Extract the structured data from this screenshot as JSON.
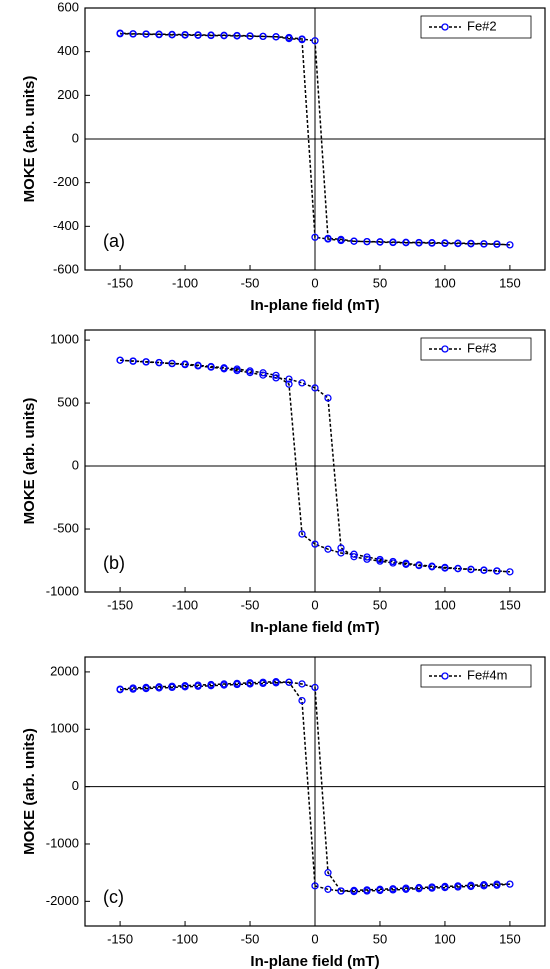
{
  "chart_data": [
    {
      "type": "line",
      "annotation": "(a)",
      "xlabel": "In-plane field (mT)",
      "ylabel": "MOKE (arb. units)",
      "x": [
        -150,
        -140,
        -130,
        -120,
        -110,
        -100,
        -90,
        -80,
        -70,
        -60,
        -50,
        -40,
        -30,
        -20,
        -10,
        0,
        10,
        20,
        30,
        40,
        50,
        60,
        70,
        80,
        90,
        100,
        110,
        120,
        130,
        140,
        150,
        140,
        130,
        120,
        110,
        100,
        90,
        80,
        70,
        60,
        50,
        40,
        30,
        20,
        10,
        0,
        -10,
        -20,
        -30,
        -40,
        -50,
        -60,
        -70,
        -80,
        -90,
        -100,
        -110,
        -120,
        -130,
        -140,
        -150
      ],
      "series": [
        {
          "name": "Fe#2",
          "color": "#0000ff",
          "line_color": "#000000",
          "values": [
            482,
            481,
            480,
            478,
            477,
            476,
            475,
            474,
            473,
            472,
            471,
            470,
            468,
            465,
            458,
            450,
            -455,
            -460,
            -468,
            -470,
            -472,
            -474,
            -475,
            -476,
            -477,
            -478,
            -479,
            -480,
            -481,
            -482,
            -485,
            -481,
            -480,
            -478,
            -477,
            -476,
            -475,
            -474,
            -473,
            -472,
            -471,
            -470,
            -468,
            -465,
            -458,
            -450,
            455,
            460,
            468,
            470,
            472,
            474,
            475,
            476,
            477,
            478,
            479,
            480,
            481,
            482,
            485
          ]
        }
      ],
      "xlim": [
        -177,
        177
      ],
      "xticks": [
        -150,
        -100,
        -50,
        0,
        50,
        100,
        150
      ],
      "ylim": [
        -600,
        600
      ],
      "yticks": [
        -600,
        -400,
        -200,
        0,
        200,
        400,
        600
      ],
      "legend": "upper right",
      "zero_lines": true
    },
    {
      "type": "line",
      "annotation": "(b)",
      "xlabel": "In-plane field (mT)",
      "ylabel": "MOKE (arb. units)",
      "x": [
        -150,
        -140,
        -130,
        -120,
        -110,
        -100,
        -90,
        -80,
        -70,
        -60,
        -50,
        -40,
        -30,
        -20,
        -10,
        0,
        10,
        20,
        30,
        40,
        50,
        60,
        70,
        80,
        90,
        100,
        110,
        120,
        130,
        140,
        150,
        140,
        130,
        120,
        110,
        100,
        90,
        80,
        70,
        60,
        50,
        40,
        30,
        20,
        10,
        0,
        -10,
        -20,
        -30,
        -40,
        -50,
        -60,
        -70,
        -80,
        -90,
        -100,
        -110,
        -120,
        -130,
        -140,
        -150
      ],
      "series": [
        {
          "name": "Fe#3",
          "color": "#0000ff",
          "line_color": "#000000",
          "values": [
            840,
            832,
            826,
            820,
            813,
            805,
            795,
            785,
            772,
            758,
            742,
            722,
            700,
            690,
            660,
            620,
            540,
            -650,
            -720,
            -740,
            -755,
            -770,
            -780,
            -790,
            -800,
            -810,
            -815,
            -822,
            -828,
            -834,
            -840,
            -832,
            -826,
            -820,
            -813,
            -805,
            -795,
            -785,
            -772,
            -758,
            -742,
            -722,
            -700,
            -690,
            -660,
            -620,
            -540,
            650,
            720,
            740,
            755,
            770,
            780,
            790,
            800,
            810,
            815,
            822,
            828,
            834,
            840
          ]
        }
      ],
      "xlim": [
        -177,
        177
      ],
      "xticks": [
        -150,
        -100,
        -50,
        0,
        50,
        100,
        150
      ],
      "ylim": [
        -1000,
        1080
      ],
      "yticks": [
        -1000,
        -500,
        0,
        500,
        1000
      ],
      "legend": "upper right",
      "zero_lines": true
    },
    {
      "type": "line",
      "annotation": "(c)",
      "xlabel": "In-plane field (mT)",
      "ylabel": "MOKE (arb. units)",
      "x": [
        -150,
        -140,
        -130,
        -120,
        -110,
        -100,
        -90,
        -80,
        -70,
        -60,
        -50,
        -40,
        -30,
        -20,
        -10,
        0,
        10,
        20,
        30,
        40,
        50,
        60,
        70,
        80,
        90,
        100,
        110,
        120,
        130,
        140,
        150,
        140,
        130,
        120,
        110,
        100,
        90,
        80,
        70,
        60,
        50,
        40,
        30,
        20,
        10,
        0,
        -10,
        -20,
        -30,
        -40,
        -50,
        -60,
        -70,
        -80,
        -90,
        -100,
        -110,
        -120,
        -130,
        -140,
        -150
      ],
      "series": [
        {
          "name": "Fe#4m",
          "color": "#0000ff",
          "line_color": "#000000",
          "values": [
            1690,
            1700,
            1710,
            1720,
            1730,
            1740,
            1750,
            1760,
            1770,
            1780,
            1790,
            1800,
            1810,
            1820,
            1790,
            1730,
            -1500,
            -1820,
            -1830,
            -1820,
            -1810,
            -1800,
            -1790,
            -1780,
            -1770,
            -1760,
            -1750,
            -1740,
            -1730,
            -1720,
            -1700,
            -1700,
            -1710,
            -1720,
            -1730,
            -1740,
            -1750,
            -1760,
            -1770,
            -1780,
            -1790,
            -1800,
            -1810,
            -1820,
            -1790,
            -1730,
            1500,
            1820,
            1830,
            1820,
            1810,
            1800,
            1790,
            1780,
            1770,
            1760,
            1750,
            1740,
            1730,
            1720,
            1700
          ]
        }
      ],
      "xlim": [
        -177,
        177
      ],
      "xticks": [
        -150,
        -100,
        -50,
        0,
        50,
        100,
        150
      ],
      "ylim": [
        -2430,
        2260
      ],
      "yticks": [
        -2000,
        -1000,
        0,
        1000,
        2000
      ],
      "legend": "upper right",
      "zero_lines": true
    }
  ]
}
